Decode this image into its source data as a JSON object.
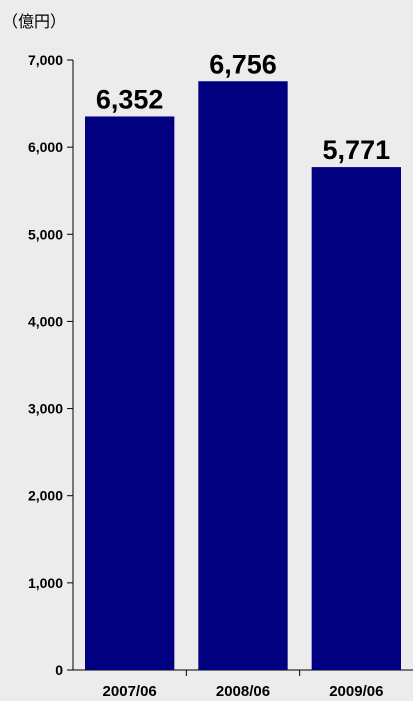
{
  "chart_data": {
    "type": "bar",
    "unit_label": "（億円）",
    "categories": [
      "2007/06",
      "2008/06",
      "2009/06"
    ],
    "values": [
      6352,
      6756,
      5771
    ],
    "value_labels": [
      "6,352",
      "6,756",
      "5,771"
    ],
    "y_ticks": [
      0,
      1000,
      2000,
      3000,
      4000,
      5000,
      6000,
      7000
    ],
    "y_tick_labels": [
      "0",
      "1,000",
      "2,000",
      "3,000",
      "4,000",
      "5,000",
      "6,000",
      "7,000"
    ],
    "ylim": [
      0,
      7000
    ],
    "grid": false,
    "legend": "none",
    "colors": {
      "bar": "#000080",
      "plot_background": "#ececec",
      "axis": "#000000"
    }
  }
}
